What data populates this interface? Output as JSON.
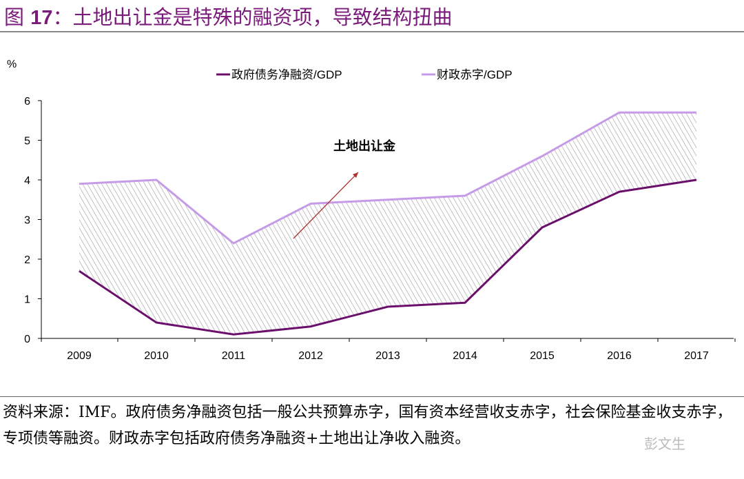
{
  "title": {
    "prefix": "图",
    "num": "17",
    "text": "：土地出让金是特殊的融资项，导致结构扭曲"
  },
  "footer": {
    "text": "资料来源：IMF。政府债务净融资包括一般公共预算赤字，国有资本经营收支赤字，社会保险基金收支赤字，专项债等融资。财政赤字包括政府债务净融资+土地出让净收入融资。"
  },
  "watermark": "彭文生",
  "chart_data": {
    "type": "area",
    "title": "",
    "ylabel": "%",
    "xlabel": "",
    "ylim": [
      0,
      6
    ],
    "yticks": [
      "0",
      "1",
      "2",
      "3",
      "4",
      "5",
      "6"
    ],
    "categories": [
      "2009",
      "2010",
      "2011",
      "2012",
      "2013",
      "2014",
      "2015",
      "2016",
      "2017"
    ],
    "series": [
      {
        "name": "政府债务净融资/GDP",
        "color": "#6a0f6a",
        "values": [
          1.7,
          0.4,
          0.1,
          0.3,
          0.8,
          0.9,
          2.8,
          3.7,
          4.0
        ]
      },
      {
        "name": "财政赤字/GDP",
        "color": "#c59be8",
        "values": [
          3.9,
          4.0,
          2.4,
          3.4,
          3.5,
          3.6,
          4.6,
          5.7,
          5.7
        ]
      }
    ],
    "fill_between": {
      "label": "土地出让金",
      "pattern": "hatched grey"
    },
    "legend": "top",
    "grid": false
  }
}
